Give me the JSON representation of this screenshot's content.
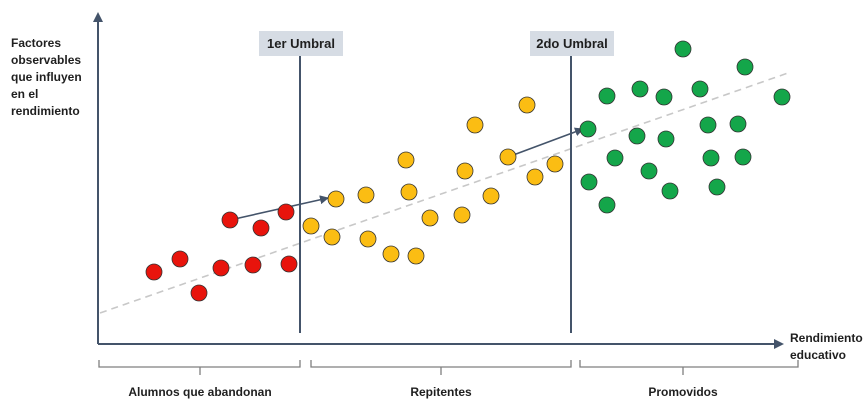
{
  "y_axis_label": [
    "Factores",
    "observables",
    "que influyen",
    "en el",
    "rendimiento"
  ],
  "x_axis_label": [
    "Rendimiento",
    "educativo"
  ],
  "thresholds": [
    {
      "label": "1er Umbral"
    },
    {
      "label": "2do Umbral"
    }
  ],
  "groups": [
    {
      "label": "Alumnos que abandonan",
      "color": "#e8140c"
    },
    {
      "label": "Repitentes",
      "color": "#fbbd13"
    },
    {
      "label": "Promovidos",
      "color": "#14a64a"
    }
  ],
  "colors": {
    "axis": "#44546a",
    "threshold_line": "#44546a",
    "trend_line": "#c8c8c8",
    "arrow": "#44546a",
    "dot_outline": "#333333",
    "label_box": "#d6dce4"
  }
}
